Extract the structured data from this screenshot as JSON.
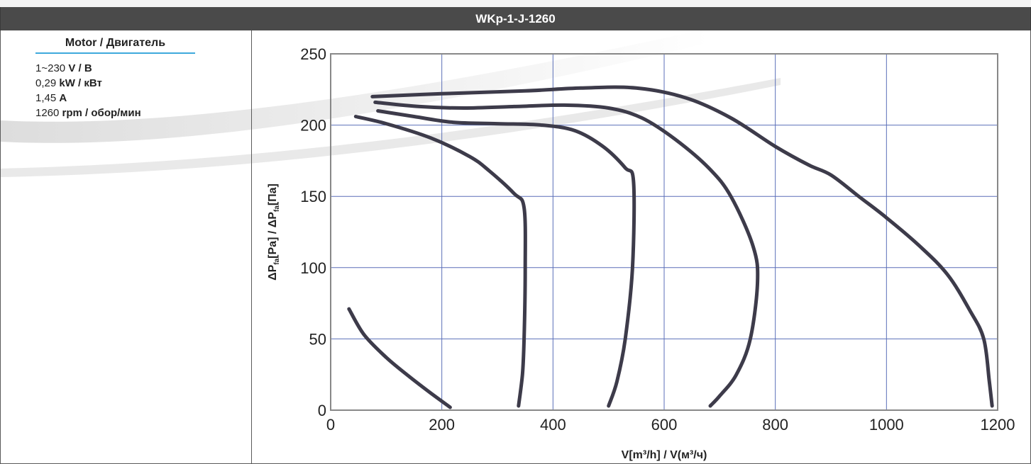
{
  "header": {
    "title": "WKp-1-J-1260"
  },
  "motor": {
    "title": "Motor / Двигатель",
    "specs": [
      {
        "value": "1~230",
        "unit": "V / В"
      },
      {
        "value": "0,29",
        "unit": "kW / кВт"
      },
      {
        "value": "1,45",
        "unit": "A"
      },
      {
        "value": "1260",
        "unit": "rpm / обор/мин"
      }
    ]
  },
  "colors": {
    "curve": "#3d3b4a",
    "grid": "#5b6fb8",
    "axis": "#888888",
    "accent": "#3fa9dc",
    "title_bg": "#4a4a4a"
  },
  "chart_data": {
    "type": "line",
    "xlabel": "V[m³/h] / V(м³/ч)",
    "ylabel_parts": [
      "ΔP",
      "fa",
      "[Pa] / ΔP",
      "fa",
      "[Па]"
    ],
    "xlim": [
      0,
      1200
    ],
    "ylim": [
      0,
      250
    ],
    "x_ticks": [
      0,
      200,
      400,
      600,
      800,
      1000,
      1200
    ],
    "y_ticks": [
      0,
      50,
      100,
      150,
      200,
      250
    ],
    "x_tick_labels": [
      "0",
      "200",
      "400",
      "600",
      "800",
      "1000",
      "1200"
    ],
    "y_tick_labels": [
      "0",
      "50",
      "100",
      "150",
      "200",
      "250"
    ],
    "grid": true,
    "series": [
      {
        "points": [
          [
            33,
            71
          ],
          [
            60,
            53
          ],
          [
            100,
            37
          ],
          [
            140,
            24
          ],
          [
            180,
            12
          ],
          [
            215,
            2
          ]
        ]
      },
      {
        "points": [
          [
            45,
            206
          ],
          [
            100,
            201
          ],
          [
            180,
            191
          ],
          [
            250,
            178
          ],
          [
            285,
            168
          ],
          [
            330,
            152
          ],
          [
            348,
            142
          ],
          [
            350,
            100
          ],
          [
            348,
            50
          ],
          [
            345,
            25
          ],
          [
            338,
            3
          ]
        ]
      },
      {
        "points": [
          [
            85,
            210
          ],
          [
            150,
            206
          ],
          [
            220,
            202
          ],
          [
            300,
            201
          ],
          [
            380,
            200
          ],
          [
            440,
            196
          ],
          [
            490,
            185
          ],
          [
            530,
            170
          ],
          [
            545,
            160
          ],
          [
            543,
            100
          ],
          [
            530,
            50
          ],
          [
            515,
            20
          ],
          [
            500,
            3
          ]
        ]
      },
      {
        "points": [
          [
            80,
            216
          ],
          [
            160,
            213
          ],
          [
            240,
            212
          ],
          [
            330,
            213
          ],
          [
            420,
            214
          ],
          [
            500,
            212
          ],
          [
            560,
            205
          ],
          [
            620,
            190
          ],
          [
            680,
            170
          ],
          [
            720,
            150
          ],
          [
            760,
            115
          ],
          [
            768,
            90
          ],
          [
            755,
            50
          ],
          [
            730,
            25
          ],
          [
            700,
            10
          ],
          [
            683,
            3
          ]
        ]
      },
      {
        "points": [
          [
            75,
            220
          ],
          [
            200,
            222
          ],
          [
            350,
            224
          ],
          [
            450,
            226
          ],
          [
            550,
            226
          ],
          [
            640,
            219
          ],
          [
            720,
            205
          ],
          [
            800,
            185
          ],
          [
            860,
            172
          ],
          [
            900,
            165
          ],
          [
            950,
            150
          ],
          [
            1000,
            135
          ],
          [
            1060,
            115
          ],
          [
            1110,
            95
          ],
          [
            1150,
            70
          ],
          [
            1175,
            50
          ],
          [
            1185,
            20
          ],
          [
            1190,
            3
          ]
        ]
      }
    ]
  }
}
